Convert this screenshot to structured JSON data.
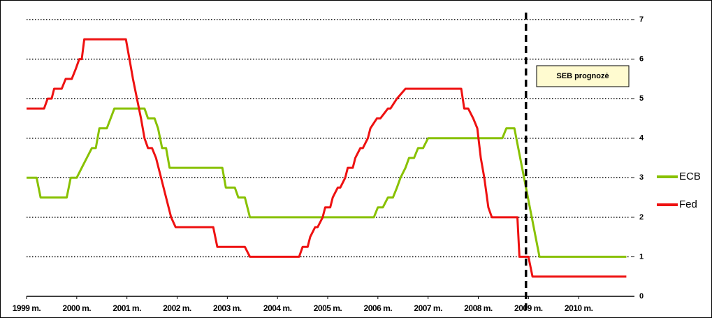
{
  "chart_data": {
    "type": "line",
    "xlim": [
      1999,
      2011
    ],
    "ylim": [
      0,
      7
    ],
    "xticks": [
      {
        "value": 1999,
        "label": "1999 m."
      },
      {
        "value": 2000,
        "label": "2000 m."
      },
      {
        "value": 2001,
        "label": "2001 m."
      },
      {
        "value": 2002,
        "label": "2002 m."
      },
      {
        "value": 2003,
        "label": "2003 m."
      },
      {
        "value": 2004,
        "label": "2004 m."
      },
      {
        "value": 2005,
        "label": "2005 m."
      },
      {
        "value": 2006,
        "label": "2006 m."
      },
      {
        "value": 2007,
        "label": "2007 m."
      },
      {
        "value": 2008,
        "label": "2008 m."
      },
      {
        "value": 2009,
        "label": "2009 m."
      },
      {
        "value": 2010,
        "label": "2010 m."
      }
    ],
    "yticks": [
      0,
      1,
      2,
      3,
      4,
      5,
      6,
      7
    ],
    "grid": true,
    "annotation": "SEB prognozė",
    "forecast_line_x": 2008.95,
    "legend": "right",
    "series": [
      {
        "name": "ECB",
        "color": "#88c100",
        "x": [
          1999.0,
          1999.2,
          1999.28,
          1999.8,
          1999.88,
          2000.0,
          2000.1,
          2000.2,
          2000.3,
          2000.38,
          2000.45,
          2000.6,
          2000.75,
          2001.35,
          2001.42,
          2001.55,
          2001.62,
          2001.7,
          2001.78,
          2001.85,
          2002.9,
          2002.97,
          2003.15,
          2003.22,
          2003.35,
          2003.45,
          2005.92,
          2006.0,
          2006.1,
          2006.2,
          2006.3,
          2006.38,
          2006.45,
          2006.55,
          2006.62,
          2006.72,
          2006.8,
          2006.9,
          2007.0,
          2007.1,
          2007.45,
          2008.48,
          2008.56,
          2008.72,
          2009.22,
          2010.95
        ],
        "values": [
          3,
          3,
          2.5,
          2.5,
          3,
          3,
          3.25,
          3.5,
          3.75,
          3.75,
          4.25,
          4.25,
          4.75,
          4.75,
          4.5,
          4.5,
          4.25,
          3.75,
          3.75,
          3.25,
          3.25,
          2.75,
          2.75,
          2.5,
          2.5,
          2,
          2,
          2.25,
          2.25,
          2.5,
          2.5,
          2.75,
          3,
          3.25,
          3.5,
          3.5,
          3.75,
          3.75,
          4,
          4,
          4,
          4,
          4.25,
          4.25,
          1,
          1
        ]
      },
      {
        "name": "Fed",
        "color": "#ee1111",
        "x": [
          1999.0,
          1999.35,
          1999.42,
          1999.5,
          1999.55,
          1999.7,
          1999.78,
          1999.9,
          1999.98,
          2000.05,
          2000.1,
          2000.15,
          2000.3,
          2000.98,
          2001.05,
          2001.12,
          2001.2,
          2001.28,
          2001.35,
          2001.42,
          2001.5,
          2001.58,
          2001.68,
          2001.78,
          2001.88,
          2001.97,
          2002.72,
          2002.8,
          2003.35,
          2003.45,
          2004.43,
          2004.5,
          2004.6,
          2004.65,
          2004.75,
          2004.8,
          2004.9,
          2004.95,
          2005.05,
          2005.1,
          2005.2,
          2005.25,
          2005.35,
          2005.4,
          2005.5,
          2005.55,
          2005.65,
          2005.7,
          2005.8,
          2005.85,
          2005.98,
          2006.05,
          2006.2,
          2006.25,
          2006.38,
          2006.55,
          2007.66,
          2007.72,
          2007.8,
          2007.9,
          2007.98,
          2008.05,
          2008.12,
          2008.2,
          2008.27,
          2008.78,
          2008.82,
          2009.0,
          2009.08,
          2010.95
        ],
        "values": [
          4.75,
          4.75,
          5,
          5,
          5.25,
          5.25,
          5.5,
          5.5,
          5.75,
          6,
          6,
          6.5,
          6.5,
          6.5,
          6,
          5.5,
          5,
          4.5,
          4,
          3.75,
          3.75,
          3.5,
          3,
          2.5,
          2,
          1.75,
          1.75,
          1.25,
          1.25,
          1,
          1,
          1.25,
          1.25,
          1.5,
          1.75,
          1.75,
          2,
          2.25,
          2.25,
          2.5,
          2.75,
          2.75,
          3,
          3.25,
          3.25,
          3.5,
          3.75,
          3.75,
          4,
          4.25,
          4.5,
          4.5,
          4.75,
          4.75,
          5,
          5.25,
          5.25,
          4.75,
          4.75,
          4.5,
          4.25,
          3.5,
          3,
          2.25,
          2,
          2,
          1,
          1,
          0.5,
          0.5
        ]
      }
    ]
  }
}
